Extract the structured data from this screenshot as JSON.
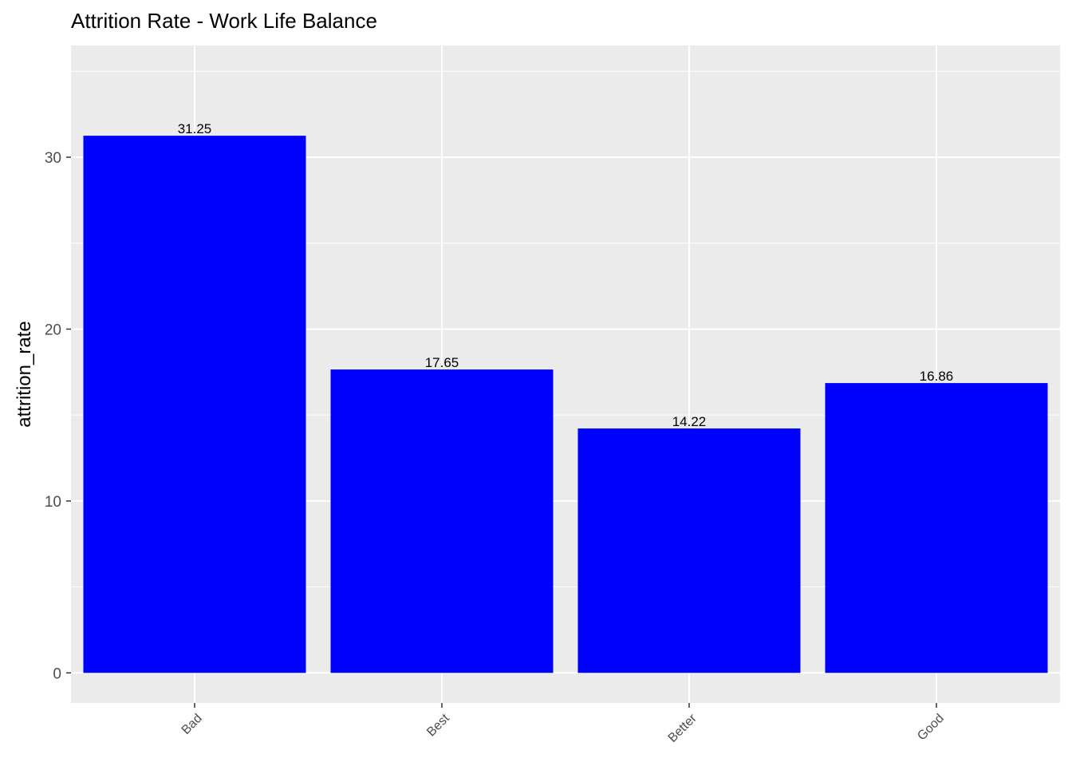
{
  "chart_data": {
    "type": "bar",
    "title": "Attrition Rate - Work Life Balance",
    "xlabel": "",
    "ylabel": "attrition_rate",
    "categories": [
      "Bad",
      "Best",
      "Better",
      "Good"
    ],
    "values": [
      31.25,
      17.65,
      14.22,
      16.86
    ],
    "data_labels": [
      "31.25",
      "17.65",
      "14.22",
      "16.86"
    ],
    "ylim": [
      -1.75,
      36.5
    ],
    "y_ticks": [
      0,
      10,
      20,
      30
    ],
    "y_tick_labels": [
      "0",
      "10",
      "20",
      "30"
    ],
    "grid": true,
    "legend": "none",
    "x_tick_rotation_deg": -45,
    "colors": {
      "bar": "#0000ff",
      "panel_background": "#ebebeb",
      "grid_line": "#ffffff",
      "tick_mark": "#333333"
    }
  }
}
